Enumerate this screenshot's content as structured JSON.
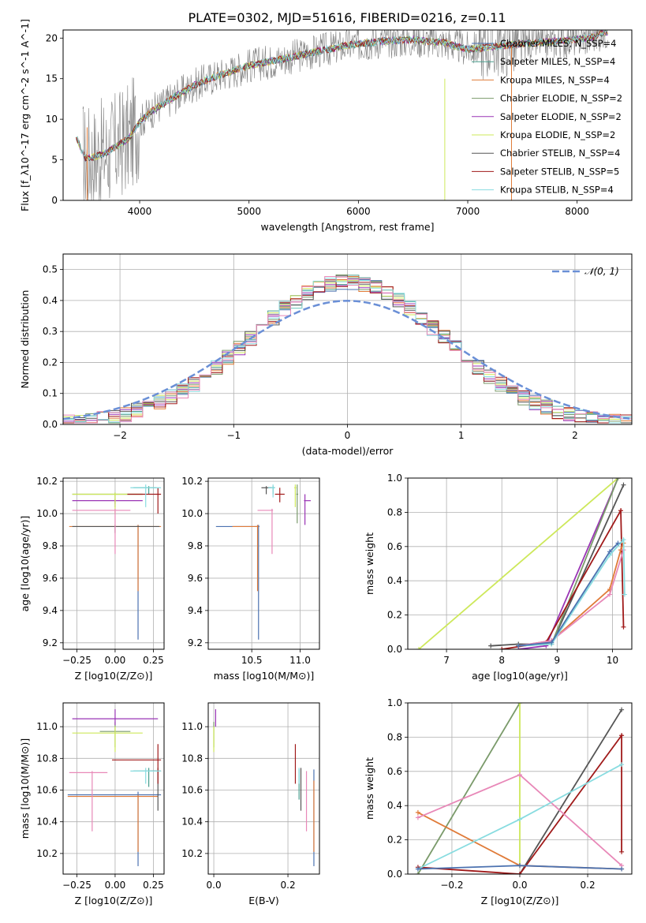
{
  "figure_title": "PLATE=0302, MJD=51616, FIBERID=0216, z=0.11",
  "colors": {
    "chabrier_miles": "#4c72b0",
    "salpeter_miles": "#4a9e8e",
    "kroupa_miles": "#e07b39",
    "chabrier_elodie": "#7a9a6a",
    "salpeter_elodie": "#9a35b5",
    "kroupa_elodie": "#cde85a",
    "chabrier_stelib": "#555555",
    "salpeter_stelib": "#a01a1a",
    "kroupa_stelib": "#88dce0",
    "salpeter_stelib_pink": "#e888b8",
    "data": "#808080",
    "gauss": "#6a8fd6"
  },
  "chart_data": [
    {
      "id": "spectrum",
      "type": "line",
      "xlabel": "wavelength [Angstrom, rest frame]",
      "ylabel": "Flux [f_λ10^-17 erg cm^-2 s^-1 A^-1]",
      "xlim": [
        3300,
        8500
      ],
      "ylim": [
        0,
        21
      ],
      "xticks": [
        4000,
        5000,
        6000,
        7000,
        8000
      ],
      "yticks": [
        0,
        5,
        10,
        15,
        20
      ],
      "legend": [
        {
          "label": "Chabrier MILES, N_SSP=4",
          "color": "#4c72b0"
        },
        {
          "label": "Salpeter MILES, N_SSP=4",
          "color": "#4a9e8e"
        },
        {
          "label": "Kroupa MILES, N_SSP=4",
          "color": "#e07b39"
        },
        {
          "label": "Chabrier ELODIE, N_SSP=2",
          "color": "#7a9a6a"
        },
        {
          "label": "Salpeter ELODIE, N_SSP=2",
          "color": "#9a35b5"
        },
        {
          "label": "Kroupa ELODIE, N_SSP=2",
          "color": "#cde85a"
        },
        {
          "label": "Chabrier STELIB, N_SSP=4",
          "color": "#555555"
        },
        {
          "label": "Salpeter STELIB, N_SSP=5",
          "color": "#a01a1a"
        },
        {
          "label": "Kroupa STELIB, N_SSP=4",
          "color": "#88dce0"
        }
      ],
      "model_continuum": [
        {
          "x": 3420,
          "y": 7.8
        },
        {
          "x": 3500,
          "y": 5.2
        },
        {
          "x": 3600,
          "y": 5.4
        },
        {
          "x": 3700,
          "y": 5.9
        },
        {
          "x": 3800,
          "y": 6.8
        },
        {
          "x": 3900,
          "y": 7.6
        },
        {
          "x": 4000,
          "y": 9.6
        },
        {
          "x": 4100,
          "y": 10.9
        },
        {
          "x": 4300,
          "y": 12.6
        },
        {
          "x": 4500,
          "y": 14.2
        },
        {
          "x": 4700,
          "y": 15.3
        },
        {
          "x": 5000,
          "y": 16.6
        },
        {
          "x": 5300,
          "y": 17.4
        },
        {
          "x": 5600,
          "y": 18.3
        },
        {
          "x": 5900,
          "y": 19.1
        },
        {
          "x": 6200,
          "y": 19.6
        },
        {
          "x": 6500,
          "y": 19.8
        },
        {
          "x": 6800,
          "y": 19.4
        },
        {
          "x": 7000,
          "y": 18.6
        },
        {
          "x": 7200,
          "y": 18.9
        },
        {
          "x": 7500,
          "y": 19.3
        },
        {
          "x": 7800,
          "y": 19.6
        },
        {
          "x": 8100,
          "y": 20.0
        },
        {
          "x": 8280,
          "y": 20.8
        }
      ]
    },
    {
      "id": "residuals",
      "type": "step",
      "xlabel": "(data-model)/error",
      "ylabel": "Normed distribution",
      "xlim": [
        -2.5,
        2.5
      ],
      "ylim": [
        0,
        0.55
      ],
      "xticks": [
        -2,
        -1,
        0,
        1,
        2
      ],
      "yticks": [
        0.0,
        0.1,
        0.2,
        0.3,
        0.4,
        0.5
      ],
      "gauss_label": "𝒩(0, 1)",
      "bin_width": 0.1
    },
    {
      "id": "age_vs_Z",
      "type": "errorbar",
      "xlabel": "Z [log10(Z/Z⊙)]",
      "ylabel": "age [log10(age/yr)]",
      "xlim": [
        -0.34,
        0.32
      ],
      "ylim": [
        9.16,
        10.22
      ],
      "xticks": [
        -0.25,
        0.0,
        0.25
      ],
      "yticks": [
        9.2,
        9.4,
        9.6,
        9.8,
        10.0,
        10.2
      ],
      "points": [
        {
          "color": "#4c72b0",
          "x": 0.15,
          "y": 9.92,
          "xerr": [
            0.01,
            0.01
          ],
          "yerr": [
            0.7,
            0.01
          ]
        },
        {
          "color": "#4a9e8e",
          "x": 0.22,
          "y": 10.16,
          "xerr": [
            0.1,
            0.05
          ],
          "yerr": [
            0.04,
            0.01
          ]
        },
        {
          "color": "#e07b39",
          "x": 0.15,
          "y": 9.92,
          "xerr": [
            0.45,
            0.15
          ],
          "yerr": [
            0.4,
            0.01
          ]
        },
        {
          "color": "#7a9a6a",
          "x": 0.0,
          "y": 10.12,
          "xerr": [
            0.28,
            0.18
          ],
          "yerr": [
            0.06,
            0.01
          ]
        },
        {
          "color": "#9a35b5",
          "x": 0.0,
          "y": 10.08,
          "xerr": [
            0.28,
            0.18
          ],
          "yerr": [
            0.04,
            0.01
          ]
        },
        {
          "color": "#cde85a",
          "x": 0.0,
          "y": 10.12,
          "xerr": [
            0.28,
            0.18
          ],
          "yerr": [
            0.12,
            0.01
          ]
        },
        {
          "color": "#555555",
          "x": 0.0,
          "y": 9.92,
          "xerr": [
            0.28,
            0.29
          ],
          "yerr": [
            0.04,
            0.01
          ]
        },
        {
          "color": "#a01a1a",
          "x": 0.28,
          "y": 10.12,
          "xerr": [
            0.2,
            0.02
          ],
          "yerr": [
            0.12,
            0.04
          ]
        },
        {
          "color": "#e888b8",
          "x": 0.0,
          "y": 10.02,
          "xerr": [
            0.28,
            0.1
          ],
          "yerr": [
            0.27,
            0.01
          ]
        },
        {
          "color": "#88dce0",
          "x": 0.2,
          "y": 10.16,
          "xerr": [
            0.1,
            0.1
          ],
          "yerr": [
            0.12,
            0.02
          ]
        }
      ]
    },
    {
      "id": "age_vs_mass",
      "type": "errorbar",
      "xlabel": "mass [log10(M/M⊙)]",
      "ylabel": "",
      "xlim": [
        10.05,
        11.2
      ],
      "ylim": [
        9.16,
        10.22
      ],
      "xticks": [
        10.5,
        11.0
      ],
      "yticks": [
        9.2,
        9.4,
        9.6,
        9.8,
        10.0,
        10.2
      ],
      "points": [
        {
          "color": "#4c72b0",
          "x": 10.57,
          "y": 9.92,
          "xerr": [
            0.44,
            0.01
          ],
          "yerr": [
            0.7,
            0.01
          ]
        },
        {
          "color": "#4a9e8e",
          "x": 10.72,
          "y": 10.16,
          "xerr": [
            0.05,
            0.02
          ],
          "yerr": [
            0.04,
            0.01
          ]
        },
        {
          "color": "#e07b39",
          "x": 10.56,
          "y": 9.92,
          "xerr": [
            0.26,
            0.01
          ],
          "yerr": [
            0.4,
            0.01
          ]
        },
        {
          "color": "#7a9a6a",
          "x": 10.97,
          "y": 10.12,
          "xerr": [
            0.01,
            0.01
          ],
          "yerr": [
            0.18,
            0.06
          ]
        },
        {
          "color": "#9a35b5",
          "x": 11.05,
          "y": 10.08,
          "xerr": [
            0.01,
            0.06
          ],
          "yerr": [
            0.15,
            0.04
          ]
        },
        {
          "color": "#cde85a",
          "x": 10.95,
          "y": 10.16,
          "xerr": [
            0.01,
            0.01
          ],
          "yerr": [
            0.12,
            0.02
          ]
        },
        {
          "color": "#555555",
          "x": 10.65,
          "y": 10.16,
          "xerr": [
            0.05,
            0.05
          ],
          "yerr": [
            0.04,
            0.01
          ]
        },
        {
          "color": "#a01a1a",
          "x": 10.79,
          "y": 10.12,
          "xerr": [
            0.05,
            0.05
          ],
          "yerr": [
            0.05,
            0.04
          ]
        },
        {
          "color": "#e888b8",
          "x": 10.71,
          "y": 10.02,
          "xerr": [
            0.15,
            0.01
          ],
          "yerr": [
            0.27,
            0.01
          ]
        },
        {
          "color": "#88dce0",
          "x": 10.72,
          "y": 10.16,
          "xerr": [
            0.05,
            0.02
          ],
          "yerr": [
            0.06,
            0.02
          ]
        }
      ]
    },
    {
      "id": "weight_vs_age",
      "type": "line",
      "xlabel": "age [log10(age/yr)]",
      "ylabel": "mass weight",
      "xlim": [
        6.3,
        10.35
      ],
      "ylim": [
        0,
        1.0
      ],
      "xticks": [
        7,
        8,
        9,
        10
      ],
      "yticks": [
        0.0,
        0.2,
        0.4,
        0.6,
        0.8,
        1.0
      ],
      "series": [
        {
          "color": "#cde85a",
          "x": [
            6.5,
            10.1
          ],
          "y": [
            0.0,
            1.0
          ]
        },
        {
          "color": "#9a35b5",
          "x": [
            8.3,
            8.8,
            10.1
          ],
          "y": [
            0.0,
            0.02,
            1.0
          ]
        },
        {
          "color": "#555555",
          "x": [
            7.8,
            8.3,
            8.9,
            10.2
          ],
          "y": [
            0.02,
            0.03,
            0.03,
            0.96
          ]
        },
        {
          "color": "#7a9a6a",
          "x": [
            8.3,
            8.9,
            10.1
          ],
          "y": [
            0.02,
            0.03,
            1.0
          ]
        },
        {
          "color": "#a01a1a",
          "x": [
            8.0,
            8.8,
            10.15,
            10.2
          ],
          "y": [
            0.0,
            0.04,
            0.81,
            0.13
          ]
        },
        {
          "color": "#e07b39",
          "x": [
            8.3,
            8.9,
            9.95,
            10.15,
            10.2
          ],
          "y": [
            0.02,
            0.05,
            0.35,
            0.58,
            0.62
          ]
        },
        {
          "color": "#e888b8",
          "x": [
            8.3,
            8.9,
            9.95,
            10.2
          ],
          "y": [
            0.02,
            0.05,
            0.32,
            0.58
          ]
        },
        {
          "color": "#88dce0",
          "x": [
            8.3,
            8.9,
            9.95,
            10.2,
            10.22
          ],
          "y": [
            0.02,
            0.03,
            0.55,
            0.64,
            0.32
          ]
        },
        {
          "color": "#4c72b0",
          "x": [
            8.3,
            8.9,
            9.95,
            10.1
          ],
          "y": [
            0.02,
            0.04,
            0.57,
            0.62
          ]
        }
      ]
    },
    {
      "id": "mass_vs_Z",
      "type": "errorbar",
      "xlabel": "Z [log10(Z/Z⊙)]",
      "ylabel": "mass [log10(M/M⊙)]",
      "xlim": [
        -0.34,
        0.32
      ],
      "ylim": [
        10.07,
        11.15
      ],
      "xticks": [
        -0.25,
        0.0,
        0.25
      ],
      "yticks": [
        10.2,
        10.4,
        10.6,
        10.8,
        11.0
      ],
      "points": [
        {
          "color": "#4c72b0",
          "x": 0.15,
          "y": 10.57,
          "xerr": [
            0.46,
            0.15
          ],
          "yerr": [
            0.45,
            0.02
          ]
        },
        {
          "color": "#4a9e8e",
          "x": 0.22,
          "y": 10.72,
          "xerr": [
            0.1,
            0.05
          ],
          "yerr": [
            0.1,
            0.02
          ]
        },
        {
          "color": "#e07b39",
          "x": 0.15,
          "y": 10.56,
          "xerr": [
            0.46,
            0.13
          ],
          "yerr": [
            0.35,
            0.01
          ]
        },
        {
          "color": "#7a9a6a",
          "x": 0.0,
          "y": 10.97,
          "xerr": [
            0.1,
            0.1
          ],
          "yerr": [
            0.1,
            0.06
          ]
        },
        {
          "color": "#9a35b5",
          "x": 0.0,
          "y": 11.05,
          "xerr": [
            0.28,
            0.28
          ],
          "yerr": [
            0.04,
            0.06
          ]
        },
        {
          "color": "#cde85a",
          "x": 0.0,
          "y": 10.96,
          "xerr": [
            0.28,
            0.18
          ],
          "yerr": [
            0.12,
            0.04
          ]
        },
        {
          "color": "#555555",
          "x": 0.28,
          "y": 10.72,
          "xerr": [
            0.05,
            0.02
          ],
          "yerr": [
            0.25,
            0.02
          ]
        },
        {
          "color": "#a01a1a",
          "x": 0.28,
          "y": 10.79,
          "xerr": [
            0.3,
            0.02
          ],
          "yerr": [
            0.15,
            0.1
          ]
        },
        {
          "color": "#e888b8",
          "x": -0.15,
          "y": 10.71,
          "xerr": [
            0.15,
            0.1
          ],
          "yerr": [
            0.37,
            0.01
          ]
        },
        {
          "color": "#88dce0",
          "x": 0.2,
          "y": 10.72,
          "xerr": [
            0.1,
            0.1
          ],
          "yerr": [
            0.08,
            0.02
          ]
        }
      ]
    },
    {
      "id": "mass_vs_ebv",
      "type": "errorbar",
      "xlabel": "E(B-V)",
      "ylabel": "",
      "xlim": [
        -0.015,
        0.285
      ],
      "ylim": [
        10.07,
        11.15
      ],
      "xticks": [
        0.0,
        0.2
      ],
      "yticks": [
        10.2,
        10.4,
        10.6,
        10.8,
        11.0
      ],
      "points": [
        {
          "color": "#4c72b0",
          "x": 0.27,
          "y": 10.57,
          "xerr": [
            0,
            0
          ],
          "yerr": [
            0.45,
            0.16
          ]
        },
        {
          "color": "#4a9e8e",
          "x": 0.23,
          "y": 10.72,
          "xerr": [
            0,
            0
          ],
          "yerr": [
            0.18,
            0.01
          ]
        },
        {
          "color": "#e07b39",
          "x": 0.27,
          "y": 10.56,
          "xerr": [
            0,
            0
          ],
          "yerr": [
            0.35,
            0.1
          ]
        },
        {
          "color": "#7a9a6a",
          "x": 0.0,
          "y": 10.97,
          "xerr": [
            0,
            0
          ],
          "yerr": [
            0.1,
            0.06
          ]
        },
        {
          "color": "#9a35b5",
          "x": 0.005,
          "y": 11.05,
          "xerr": [
            0,
            0
          ],
          "yerr": [
            0.05,
            0.06
          ]
        },
        {
          "color": "#cde85a",
          "x": 0.0,
          "y": 10.96,
          "xerr": [
            0,
            0
          ],
          "yerr": [
            0.12,
            0.04
          ]
        },
        {
          "color": "#555555",
          "x": 0.235,
          "y": 10.72,
          "xerr": [
            0,
            0
          ],
          "yerr": [
            0.25,
            0.02
          ]
        },
        {
          "color": "#a01a1a",
          "x": 0.22,
          "y": 10.79,
          "xerr": [
            0,
            0
          ],
          "yerr": [
            0.15,
            0.1
          ]
        },
        {
          "color": "#e888b8",
          "x": 0.25,
          "y": 10.71,
          "xerr": [
            0,
            0
          ],
          "yerr": [
            0.37,
            0.01
          ]
        },
        {
          "color": "#88dce0",
          "x": 0.23,
          "y": 10.72,
          "xerr": [
            0,
            0
          ],
          "yerr": [
            0.08,
            0.02
          ]
        }
      ]
    },
    {
      "id": "weight_vs_Z",
      "type": "line",
      "xlabel": "Z [log10(Z/Z⊙)]",
      "ylabel": "mass weight",
      "xlim": [
        -0.33,
        0.33
      ],
      "ylim": [
        0,
        1.0
      ],
      "xticks": [
        -0.2,
        0.0,
        0.2
      ],
      "yticks": [
        0.0,
        0.2,
        0.4,
        0.6,
        0.8,
        1.0
      ],
      "series": [
        {
          "color": "#7a9a6a",
          "x": [
            -0.3,
            0.0
          ],
          "y": [
            0.0,
            1.0
          ]
        },
        {
          "color": "#cde85a",
          "x": [
            0.0,
            0.0
          ],
          "y": [
            1.0,
            0.05
          ]
        },
        {
          "color": "#555555",
          "x": [
            0.0,
            0.3
          ],
          "y": [
            0.0,
            0.96
          ]
        },
        {
          "color": "#a01a1a",
          "x": [
            -0.3,
            0.0,
            0.3,
            0.3
          ],
          "y": [
            0.04,
            0.0,
            0.81,
            0.13
          ]
        },
        {
          "color": "#e07b39",
          "x": [
            -0.3,
            0.0,
            0.3
          ],
          "y": [
            0.36,
            0.05,
            0.03
          ]
        },
        {
          "color": "#e888b8",
          "x": [
            -0.3,
            0.0,
            0.3
          ],
          "y": [
            0.33,
            0.58,
            0.05
          ]
        },
        {
          "color": "#88dce0",
          "x": [
            -0.3,
            0.0,
            0.3
          ],
          "y": [
            0.03,
            0.32,
            0.64
          ]
        },
        {
          "color": "#4c72b0",
          "x": [
            -0.3,
            0.0,
            0.3
          ],
          "y": [
            0.03,
            0.05,
            0.03
          ]
        }
      ]
    }
  ]
}
